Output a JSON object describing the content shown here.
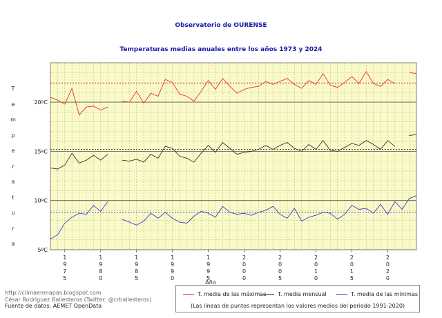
{
  "chart_data": {
    "type": "line",
    "title": "Observatorio de OURENSE",
    "subtitle": "Temperaturas medias anuales entre los años 1973 y 2024",
    "xlabel": "Año",
    "ylabel": "Temperatura",
    "xlim": [
      1973,
      2024
    ],
    "ylim": [
      5,
      24
    ],
    "y_ticks": [
      {
        "value": 5,
        "label": "5ºC"
      },
      {
        "value": 10,
        "label": "10ºC"
      },
      {
        "value": 15,
        "label": "15ºC"
      },
      {
        "value": 20,
        "label": "20ºC"
      }
    ],
    "x_ticks": [
      {
        "value": 1975,
        "label": "1975"
      },
      {
        "value": 1980,
        "label": "1980"
      },
      {
        "value": 1985,
        "label": "1985"
      },
      {
        "value": 1990,
        "label": "1990"
      },
      {
        "value": 1995,
        "label": "1995"
      },
      {
        "value": 2000,
        "label": "2000"
      },
      {
        "value": 2005,
        "label": "2005"
      },
      {
        "value": 2010,
        "label": "2010"
      },
      {
        "value": 2015,
        "label": "2015"
      },
      {
        "value": 2020,
        "label": "2020"
      }
    ],
    "grid": true,
    "background": "#fafac8",
    "series": [
      {
        "name": "T. media de las máximas",
        "color": "#e8302a",
        "reference_mean_1991_2020": 21.9,
        "values": [
          20.5,
          20.2,
          19.8,
          21.4,
          18.7,
          19.5,
          19.6,
          19.2,
          19.5,
          null,
          20.1,
          20.0,
          21.1,
          19.9,
          20.9,
          20.6,
          22.3,
          22.0,
          20.8,
          20.6,
          20.1,
          21.1,
          22.2,
          21.3,
          22.4,
          21.6,
          20.9,
          21.3,
          21.5,
          21.6,
          22.1,
          21.8,
          22.1,
          22.4,
          21.8,
          21.4,
          22.2,
          21.8,
          22.9,
          21.7,
          21.5,
          22.0,
          22.6,
          21.9,
          23.1,
          21.9,
          21.6,
          22.3,
          21.9,
          null,
          23.0,
          22.9
        ]
      },
      {
        "name": "T. media mensual",
        "color": "#333333",
        "reference_mean_1991_2020": 15.2,
        "values": [
          13.3,
          13.2,
          13.6,
          14.8,
          13.8,
          14.1,
          14.6,
          14.1,
          14.7,
          null,
          14.1,
          14.0,
          14.2,
          13.9,
          14.7,
          14.3,
          15.5,
          15.3,
          14.5,
          14.3,
          13.9,
          14.8,
          15.6,
          14.9,
          15.9,
          15.3,
          14.7,
          14.9,
          15.0,
          15.2,
          15.6,
          15.2,
          15.6,
          15.9,
          15.3,
          15.0,
          15.7,
          15.2,
          16.1,
          15.1,
          15.0,
          15.4,
          15.8,
          15.6,
          16.1,
          15.7,
          15.2,
          16.1,
          15.5,
          null,
          16.6,
          16.7
        ]
      },
      {
        "name": "T. media de las mínimas",
        "color": "#3b3bd9",
        "reference_mean_1991_2020": 8.8,
        "values": [
          6.1,
          6.5,
          7.7,
          8.3,
          8.7,
          8.6,
          9.5,
          8.9,
          9.9,
          null,
          8.1,
          7.8,
          7.5,
          7.9,
          8.7,
          8.2,
          8.8,
          8.2,
          7.8,
          7.7,
          8.4,
          8.9,
          8.7,
          8.3,
          9.4,
          8.8,
          8.6,
          8.7,
          8.5,
          8.8,
          9.0,
          9.4,
          8.6,
          8.2,
          9.2,
          7.9,
          8.3,
          8.5,
          8.8,
          8.7,
          8.1,
          8.6,
          9.5,
          9.1,
          9.2,
          8.7,
          9.6,
          8.6,
          9.9,
          9.1,
          10.2,
          10.5
        ]
      }
    ]
  },
  "legend": {
    "note": "(Las líneas de puntos representan los valores medios del periodo 1991-2020)"
  },
  "credits": {
    "line1": "http://climaenmapas.blogspot.com",
    "line2": "César Rodríguez Ballesteros (Twitter: @crballesteros)",
    "line3": "Fuente de datos: AEMET OpenData"
  }
}
